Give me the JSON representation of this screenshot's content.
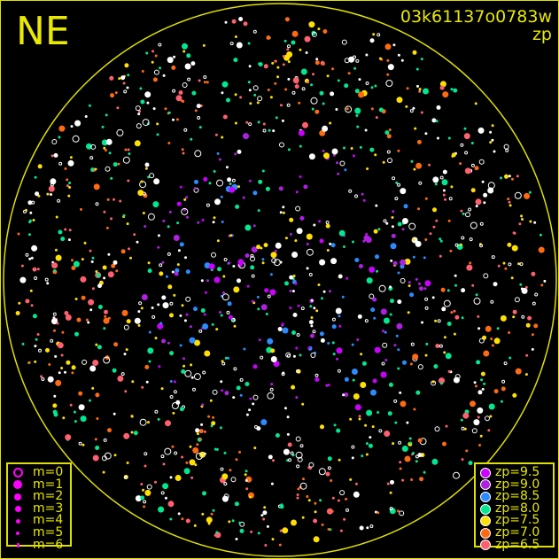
{
  "chart_data": {
    "type": "scatter",
    "title": "03k61137o0783w",
    "subtitle": "zp",
    "direction_label": "NE",
    "description_of_marks": "all-sky star map: stars sized by magnitude, colored by zero point",
    "magnitude_legend": [
      {
        "label": "m=0",
        "size": 0
      },
      {
        "label": "m=1",
        "size": 1
      },
      {
        "label": "m=2",
        "size": 2
      },
      {
        "label": "m=3",
        "size": 3
      },
      {
        "label": "m=4",
        "size": 4
      },
      {
        "label": "m=5",
        "size": 5
      },
      {
        "label": "m=6",
        "size": 6
      }
    ],
    "zp_legend": [
      {
        "label": "zp=9.5",
        "color": "#cc00ff"
      },
      {
        "label": "zp=9.0",
        "color": "#b020e0"
      },
      {
        "label": "zp=8.5",
        "color": "#2a8cff"
      },
      {
        "label": "zp=8.0",
        "color": "#00e890"
      },
      {
        "label": "zp=7.5",
        "color": "#ffe000"
      },
      {
        "label": "zp=7.0",
        "color": "#ff6a10"
      },
      {
        "label": "zp=6.5",
        "color": "#ff6070"
      }
    ],
    "colors": {
      "frame": "#e0e000",
      "background": "#000000",
      "legend_marker_m": "#ff00ff",
      "unmatched": "#ffffff"
    }
  }
}
